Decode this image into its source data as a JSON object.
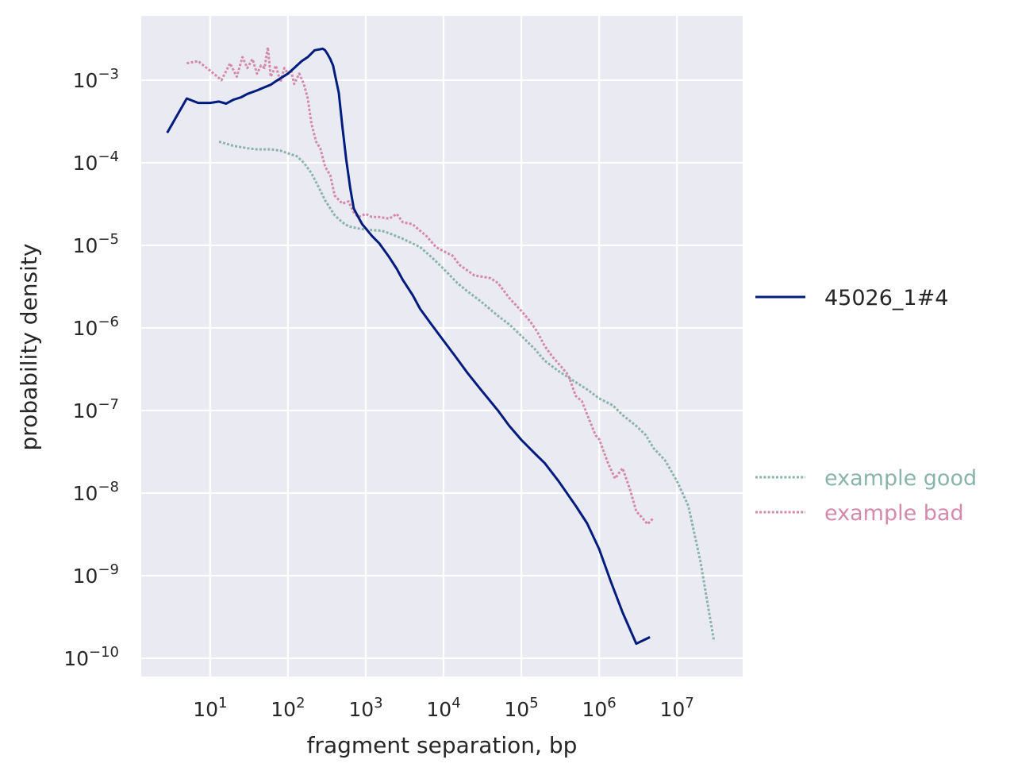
{
  "chart_data": {
    "type": "line",
    "title": "",
    "xlabel": "fragment separation, bp",
    "ylabel": "probability density",
    "x_scale": "log",
    "y_scale": "log",
    "xlim": [
      1.3,
      70000000
    ],
    "ylim": [
      6e-11,
      0.006
    ],
    "grid": true,
    "x_ticks": [
      {
        "value": 10,
        "base": "10",
        "exp": "1"
      },
      {
        "value": 100,
        "base": "10",
        "exp": "2"
      },
      {
        "value": 1000,
        "base": "10",
        "exp": "3"
      },
      {
        "value": 10000,
        "base": "10",
        "exp": "4"
      },
      {
        "value": 100000,
        "base": "10",
        "exp": "5"
      },
      {
        "value": 1000000,
        "base": "10",
        "exp": "6"
      },
      {
        "value": 10000000,
        "base": "10",
        "exp": "7"
      }
    ],
    "y_ticks": [
      {
        "value": 0.001,
        "base": "10",
        "exp": "−3"
      },
      {
        "value": 0.0001,
        "base": "10",
        "exp": "−4"
      },
      {
        "value": 1e-05,
        "base": "10",
        "exp": "−5"
      },
      {
        "value": 1e-06,
        "base": "10",
        "exp": "−6"
      },
      {
        "value": 1e-07,
        "base": "10",
        "exp": "−7"
      },
      {
        "value": 1e-08,
        "base": "10",
        "exp": "−8"
      },
      {
        "value": 1e-09,
        "base": "10",
        "exp": "−9"
      },
      {
        "value": 1e-10,
        "base": "10",
        "exp": "−10"
      }
    ],
    "legend_placement": "right",
    "series": [
      {
        "name": "45026_1#4",
        "color": "#001c7f",
        "style": "solid",
        "x": [
          2.8,
          5,
          7,
          10,
          13,
          16,
          20,
          25,
          30,
          40,
          50,
          60,
          70,
          80,
          100,
          120,
          150,
          180,
          200,
          220,
          250,
          280,
          300,
          320,
          350,
          380,
          400,
          450,
          500,
          560,
          630,
          700,
          800,
          900,
          1000,
          1200,
          1500,
          2000,
          2500,
          3000,
          4000,
          5000,
          7000,
          10000,
          14000,
          20000,
          30000,
          50000,
          70000,
          100000,
          150000,
          200000,
          300000,
          500000,
          700000,
          1000000,
          1400000,
          2000000,
          3000000,
          4500000
        ],
        "y": [
          0.00023,
          0.0006,
          0.00053,
          0.00053,
          0.00055,
          0.00052,
          0.00058,
          0.00062,
          0.00068,
          0.00075,
          0.00082,
          0.00088,
          0.00097,
          0.00105,
          0.0012,
          0.0014,
          0.0017,
          0.0019,
          0.0021,
          0.0023,
          0.00235,
          0.0024,
          0.0023,
          0.0021,
          0.0018,
          0.0015,
          0.0012,
          0.0007,
          0.00028,
          0.00011,
          5e-05,
          2.8e-05,
          2.2e-05,
          1.8e-05,
          1.6e-05,
          1.3e-05,
          1.05e-05,
          7.2e-06,
          5.2e-06,
          3.8e-06,
          2.5e-06,
          1.7e-06,
          1.1e-06,
          7e-07,
          4.6e-07,
          2.9e-07,
          1.8e-07,
          1e-07,
          6.5e-08,
          4.4e-08,
          3e-08,
          2.3e-08,
          1.4e-08,
          7e-09,
          4.3e-09,
          2.1e-09,
          8.7e-10,
          3.6e-10,
          1.5e-10,
          1.8e-10
        ]
      },
      {
        "name": "example good",
        "color": "#8ab4ab",
        "style": "dotted",
        "x": [
          13,
          20,
          30,
          40,
          60,
          80,
          100,
          130,
          160,
          200,
          250,
          300,
          400,
          500,
          600,
          800,
          1000,
          1300,
          1600,
          2000,
          3000,
          5000,
          7000,
          10000,
          15000,
          20000,
          30000,
          50000,
          70000,
          100000,
          150000,
          200000,
          300000,
          500000,
          700000,
          1000000,
          1500000,
          2000000,
          3000000,
          4000000,
          5000000,
          7000000,
          10000000,
          14000000,
          20000000,
          30000000
        ],
        "y": [
          0.00018,
          0.00016,
          0.00015,
          0.000145,
          0.000145,
          0.00014,
          0.00013,
          0.00012,
          0.0001,
          7.5e-05,
          5e-05,
          3.5e-05,
          2.3e-05,
          1.9e-05,
          1.7e-05,
          1.6e-05,
          1.55e-05,
          1.52e-05,
          1.5e-05,
          1.4e-05,
          1.2e-05,
          9.5e-06,
          7.2e-06,
          5.2e-06,
          3.5e-06,
          2.8e-06,
          2.1e-06,
          1.4e-06,
          1.1e-06,
          8e-07,
          5.5e-07,
          4e-07,
          3e-07,
          2.2e-07,
          1.8e-07,
          1.4e-07,
          1.15e-07,
          8.8e-08,
          6.5e-08,
          5e-08,
          3.5e-08,
          2.5e-08,
          1.4e-08,
          7e-09,
          1.5e-09,
          1.6e-10
        ]
      },
      {
        "name": "example bad",
        "color": "#d48aaa",
        "style": "dotted",
        "x": [
          5,
          7,
          10,
          14,
          18,
          22,
          26,
          30,
          35,
          40,
          45,
          50,
          55,
          60,
          70,
          80,
          90,
          100,
          110,
          120,
          140,
          160,
          180,
          200,
          230,
          260,
          300,
          350,
          400,
          500,
          600,
          700,
          800,
          1000,
          1200,
          1500,
          2000,
          2500,
          3000,
          4000,
          5000,
          6000,
          8000,
          10000,
          13000,
          16000,
          20000,
          25000,
          30000,
          40000,
          50000,
          70000,
          100000,
          130000,
          160000,
          200000,
          250000,
          300000,
          400000,
          500000,
          600000,
          700000,
          900000,
          1000000,
          1300000,
          1600000,
          2000000,
          2500000,
          3000000,
          3600000,
          4200000,
          5000000
        ],
        "y": [
          0.0016,
          0.0017,
          0.0013,
          0.001,
          0.0016,
          0.0011,
          0.0019,
          0.0014,
          0.0018,
          0.0012,
          0.0015,
          0.0014,
          0.0025,
          0.0011,
          0.0015,
          0.00095,
          0.0014,
          0.0012,
          0.0013,
          0.0009,
          0.0012,
          0.0009,
          0.0006,
          0.0003,
          0.00018,
          0.00015,
          9e-05,
          7e-05,
          4e-05,
          3.2e-05,
          3.4e-05,
          2.5e-05,
          2.2e-05,
          2.4e-05,
          2.2e-05,
          2.2e-05,
          2.1e-05,
          2.4e-05,
          1.9e-05,
          1.8e-05,
          1.5e-05,
          1.3e-05,
          9.5e-06,
          8.5e-06,
          7.5e-06,
          5.8e-06,
          5e-06,
          4.3e-06,
          4.2e-06,
          4e-06,
          3.5e-06,
          2.3e-06,
          1.6e-06,
          1.2e-06,
          9e-07,
          6e-07,
          4.5e-07,
          3.7e-07,
          2.7e-07,
          1.5e-07,
          1.3e-07,
          9e-08,
          5e-08,
          4.5e-08,
          2.3e-08,
          1.5e-08,
          2e-08,
          1.1e-08,
          6e-09,
          5e-09,
          4.2e-09,
          5e-09
        ]
      }
    ]
  }
}
